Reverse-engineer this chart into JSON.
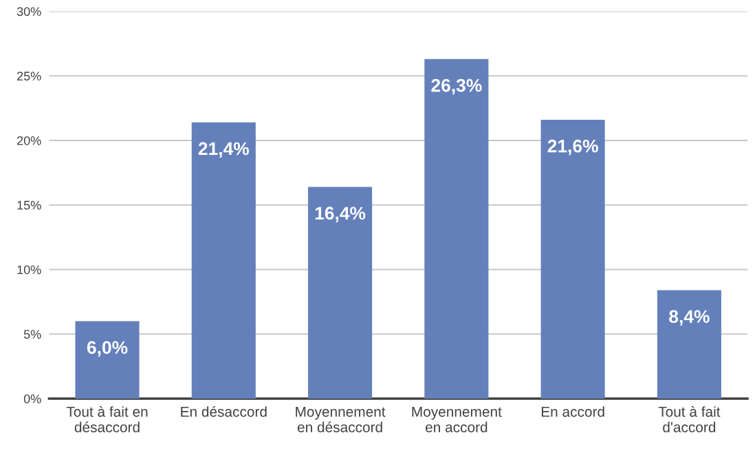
{
  "chart_data": {
    "type": "bar",
    "categories": [
      "Tout à fait en\ndésaccord",
      "En désaccord",
      "Moyennement\nen désaccord",
      "Moyennement\nen accord",
      "En accord",
      "Tout à fait\nd'accord"
    ],
    "values": [
      6.0,
      21.4,
      16.4,
      26.3,
      21.6,
      8.4
    ],
    "value_labels": [
      "6,0%",
      "21,4%",
      "16,4%",
      "26,3%",
      "21,6%",
      "8,4%"
    ],
    "color": "#6480bb",
    "ylim": [
      0,
      30
    ],
    "yticks": [
      {
        "value": 0,
        "label": "0%"
      },
      {
        "value": 5,
        "label": "5%"
      },
      {
        "value": 10,
        "label": "10%"
      },
      {
        "value": 15,
        "label": "15%"
      },
      {
        "value": 20,
        "label": "20%"
      },
      {
        "value": 25,
        "label": "25%"
      },
      {
        "value": 30,
        "label": "30%"
      }
    ],
    "grid": "y",
    "legend": false
  }
}
